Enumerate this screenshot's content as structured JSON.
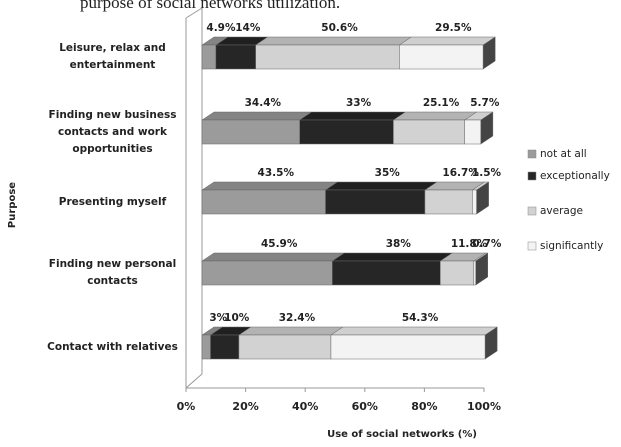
{
  "chart_data": {
    "type": "stacked-bar-3d",
    "caption": "purpose of social networks utilization.",
    "categories": [
      "Leisure, relax and entertainment",
      "Finding new business contacts and work opportunities",
      "Presenting myself",
      "Finding new personal contacts",
      "Contact with relatives"
    ],
    "series": [
      {
        "name": "not at all",
        "color": "#9b9b9b",
        "values": [
          4.9,
          34.4,
          43.5,
          45.9,
          3
        ],
        "value_labels": [
          "4.9%",
          "34.4%",
          "43.5%",
          "45.9%",
          "3%"
        ]
      },
      {
        "name": "exceptionally",
        "color": "#262626",
        "values": [
          14,
          33,
          35,
          38,
          10
        ],
        "value_labels": [
          "14%",
          "33%",
          "35%",
          "38%",
          "10%"
        ]
      },
      {
        "name": "average",
        "color": "#d2d2d2",
        "values": [
          50.6,
          25.1,
          16.7,
          11.8,
          32.4
        ],
        "value_labels": [
          "50.6%",
          "25.1%",
          "16.7%",
          "11.8%",
          "32.4%"
        ]
      },
      {
        "name": "significantly",
        "color": "#f3f3f3",
        "values": [
          29.5,
          5.7,
          1.5,
          0.7,
          54.3
        ],
        "value_labels": [
          "29.5%",
          "5.7%",
          "1.5%",
          "0.7%",
          "54.3%"
        ]
      }
    ],
    "xlim": [
      0,
      100
    ],
    "xticks": [
      {
        "value": 0,
        "label": "0%"
      },
      {
        "value": 20,
        "label": "20%"
      },
      {
        "value": 40,
        "label": "40%"
      },
      {
        "value": 60,
        "label": "60%"
      },
      {
        "value": 80,
        "label": "80%"
      },
      {
        "value": 100,
        "label": "100%"
      }
    ],
    "xlabel": "Use of social networks (%)",
    "ylabel": "Purpose",
    "legend": "right"
  }
}
